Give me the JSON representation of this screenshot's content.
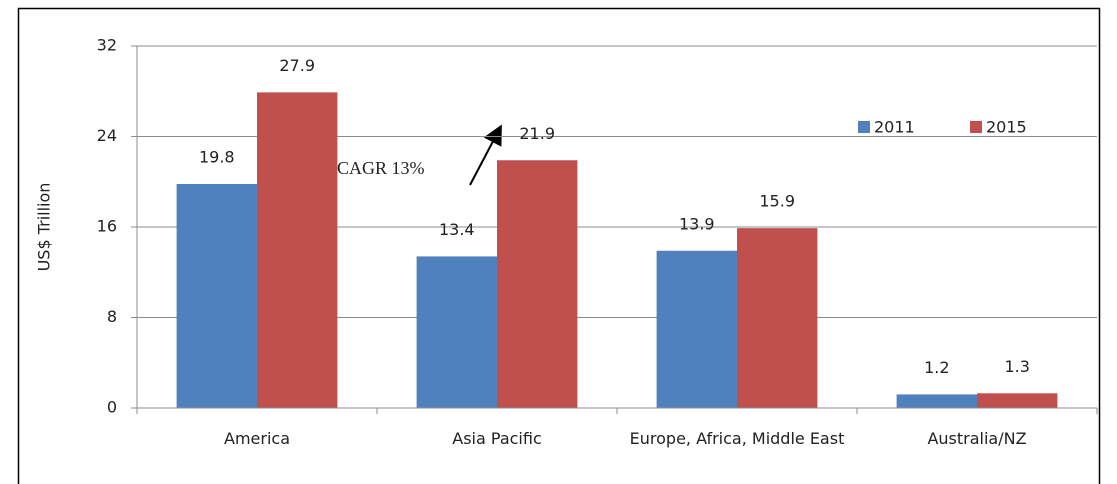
{
  "chart_data": {
    "type": "bar",
    "ylabel": "US$ Trillion",
    "annotation": "CAGR 13%",
    "categories": [
      "America",
      "Asia Pacific",
      "Europe, Africa, Middle East",
      "Australia/NZ"
    ],
    "series": [
      {
        "name": "2011",
        "color": "#4f81bd",
        "values": [
          19.8,
          13.4,
          13.9,
          1.2
        ]
      },
      {
        "name": "2015",
        "color": "#c0504d",
        "values": [
          27.9,
          21.9,
          15.9,
          1.3
        ]
      }
    ],
    "ylim": [
      0,
      32
    ],
    "yticks": [
      0,
      8,
      16,
      24,
      32
    ],
    "grid": true,
    "legend": "top-right"
  }
}
